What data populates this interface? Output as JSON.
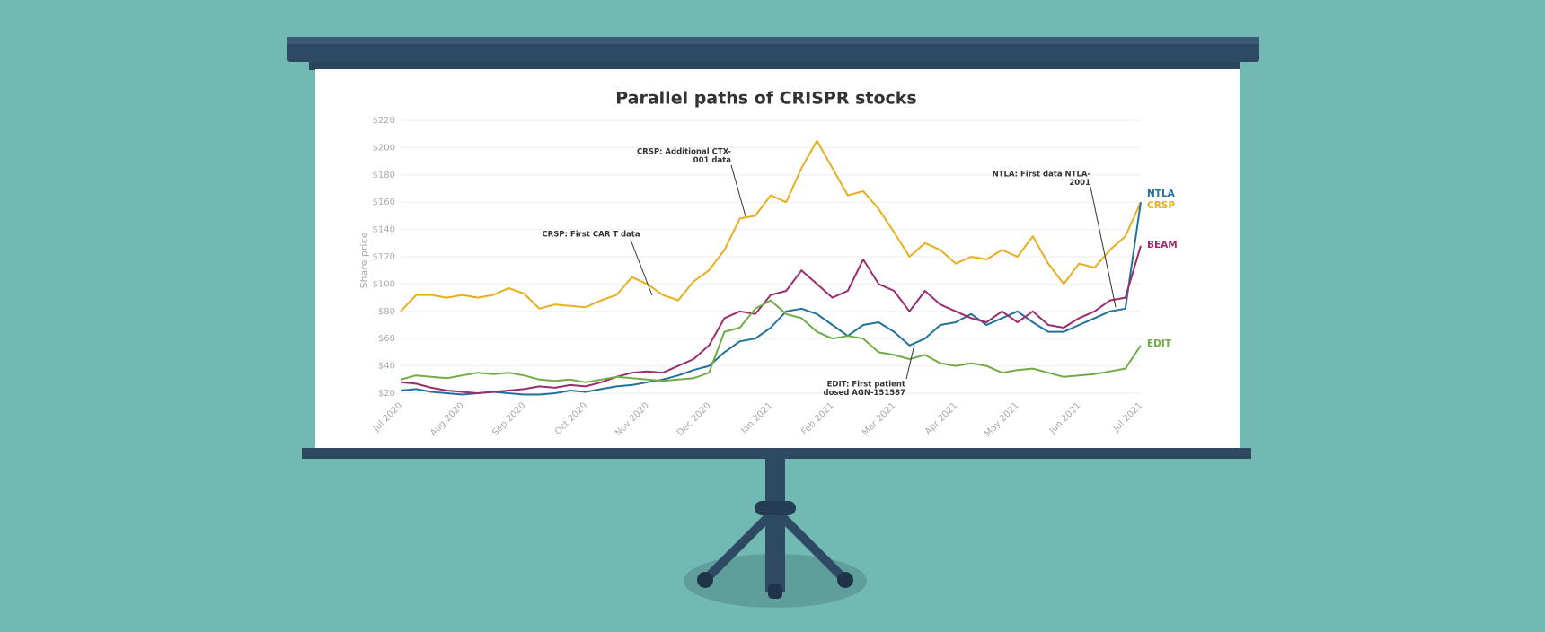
{
  "chart_data": {
    "type": "line",
    "title": "Parallel paths of CRISPR stocks",
    "y_label": "Share price",
    "categories": [
      "Jul 2020",
      null,
      null,
      null,
      "Aug 2020",
      null,
      null,
      null,
      "Sep 2020",
      null,
      null,
      null,
      "Oct 2020",
      null,
      null,
      null,
      "Nov 2020",
      null,
      null,
      null,
      "Dec 2020",
      null,
      null,
      null,
      "Jan 2021",
      null,
      null,
      null,
      "Feb 2021",
      null,
      null,
      null,
      "Mar 2021",
      null,
      null,
      null,
      "Apr 2021",
      null,
      null,
      null,
      "May 2021",
      null,
      null,
      null,
      "Jun 2021",
      null,
      null,
      null,
      "Jul 2021"
    ],
    "ylim": [
      20,
      220
    ],
    "yticks": [
      {
        "value": 20,
        "label": "$20"
      },
      {
        "value": 40,
        "label": "$40"
      },
      {
        "value": 60,
        "label": "$60"
      },
      {
        "value": 80,
        "label": "$80"
      },
      {
        "value": 100,
        "label": "$100"
      },
      {
        "value": 120,
        "label": "$120"
      },
      {
        "value": 140,
        "label": "$140"
      },
      {
        "value": 160,
        "label": "$160"
      },
      {
        "value": 180,
        "label": "$180"
      },
      {
        "value": 200,
        "label": "$200"
      },
      {
        "value": 220,
        "label": "$220"
      }
    ],
    "grid": true,
    "series": [
      {
        "name": "CRSP",
        "color": "#e8ae1f",
        "values": [
          80,
          92,
          92,
          90,
          92,
          90,
          92,
          97,
          93,
          82,
          85,
          84,
          83,
          88,
          92,
          105,
          100,
          92,
          88,
          102,
          110,
          125,
          148,
          150,
          165,
          160,
          185,
          205,
          185,
          165,
          168,
          155,
          138,
          120,
          130,
          125,
          115,
          120,
          118,
          125,
          120,
          135,
          115,
          100,
          115,
          112,
          125,
          135,
          160
        ]
      },
      {
        "name": "NTLA",
        "color": "#23709b",
        "values": [
          22,
          23,
          21,
          20,
          19,
          20,
          21,
          20,
          19,
          19,
          20,
          22,
          21,
          23,
          25,
          26,
          28,
          30,
          33,
          37,
          40,
          50,
          58,
          60,
          68,
          80,
          82,
          78,
          70,
          62,
          70,
          72,
          65,
          55,
          60,
          70,
          72,
          78,
          70,
          75,
          80,
          72,
          65,
          65,
          70,
          75,
          80,
          82,
          160
        ]
      },
      {
        "name": "BEAM",
        "color": "#9b2d6e",
        "values": [
          28,
          27,
          24,
          22,
          21,
          20,
          21,
          22,
          23,
          25,
          24,
          26,
          25,
          28,
          32,
          35,
          36,
          35,
          40,
          45,
          55,
          75,
          80,
          78,
          92,
          95,
          110,
          100,
          90,
          95,
          118,
          100,
          95,
          80,
          95,
          85,
          80,
          75,
          72,
          80,
          72,
          80,
          70,
          68,
          75,
          80,
          88,
          90,
          128
        ]
      },
      {
        "name": "EDIT",
        "color": "#71ab48",
        "values": [
          30,
          33,
          32,
          31,
          33,
          35,
          34,
          35,
          33,
          30,
          29,
          30,
          28,
          30,
          32,
          31,
          30,
          29,
          30,
          31,
          35,
          65,
          68,
          82,
          88,
          78,
          75,
          65,
          60,
          62,
          60,
          50,
          48,
          45,
          48,
          42,
          40,
          42,
          40,
          35,
          37,
          38,
          35,
          32,
          33,
          34,
          36,
          38,
          55
        ]
      }
    ],
    "annotations": [
      [
        "CRSP: First CAR T data"
      ],
      [
        "CRSP: Additional CTX-",
        "001 data"
      ],
      [
        "NTLA: First data NTLA-",
        "2001"
      ],
      [
        "EDIT: First patient",
        "dosed AGN-151587"
      ]
    ]
  }
}
